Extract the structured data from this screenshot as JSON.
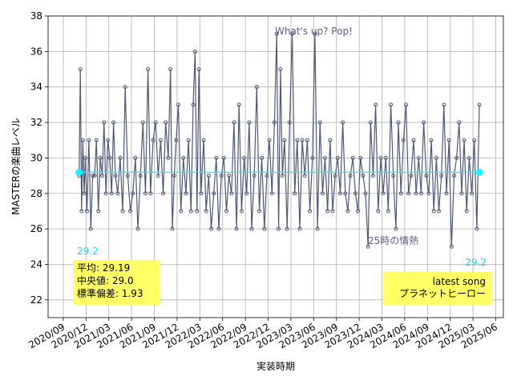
{
  "chart_data": {
    "type": "line",
    "xlabel": "実装時期",
    "ylabel": "MASTERの楽曲レベル",
    "xlim": [
      "2020/07",
      "2025/07"
    ],
    "xticks": [
      "2020/09",
      "2020/12",
      "2021/03",
      "2021/06",
      "2021/09",
      "2021/12",
      "2022/03",
      "2022/06",
      "2022/09",
      "2022/12",
      "2023/03",
      "2023/06",
      "2023/09",
      "2023/12",
      "2024/03",
      "2024/06",
      "2024/09",
      "2024/12",
      "2025/03",
      "2025/06"
    ],
    "ylim": [
      21,
      38
    ],
    "yticks": [
      22,
      24,
      26,
      28,
      30,
      32,
      34,
      36,
      38
    ],
    "grid": true,
    "series": [
      {
        "name": "MASTER",
        "color": "#4f5878",
        "x": [
          "2020/11",
          "2020/11",
          "2020/11",
          "2020/11",
          "2020/11",
          "2020/11",
          "2020/12",
          "2020/12",
          "2020/12",
          "2020/12",
          "2021/01",
          "2021/01",
          "2021/01",
          "2021/01",
          "2021/02",
          "2021/02",
          "2021/02",
          "2021/02",
          "2021/03",
          "2021/03",
          "2021/03",
          "2021/03",
          "2021/04",
          "2021/04",
          "2021/04",
          "2021/05",
          "2021/05",
          "2021/05",
          "2021/06",
          "2021/06",
          "2021/06",
          "2021/07",
          "2021/07",
          "2021/07",
          "2021/08",
          "2021/08",
          "2021/08",
          "2021/09",
          "2021/09",
          "2021/09",
          "2021/10",
          "2021/10",
          "2021/10",
          "2021/11",
          "2021/11",
          "2021/11",
          "2021/11",
          "2021/12",
          "2021/12",
          "2021/12",
          "2022/01",
          "2022/01",
          "2022/01",
          "2022/02",
          "2022/02",
          "2022/02",
          "2022/02",
          "2022/03",
          "2022/03",
          "2022/03",
          "2022/04",
          "2022/04",
          "2022/04",
          "2022/05",
          "2022/05",
          "2022/05",
          "2022/06",
          "2022/06",
          "2022/06",
          "2022/07",
          "2022/07",
          "2022/07",
          "2022/08",
          "2022/08",
          "2022/08",
          "2022/09",
          "2022/09",
          "2022/09",
          "2022/10",
          "2022/10",
          "2022/10",
          "2022/11",
          "2022/11",
          "2022/11",
          "2022/12",
          "2022/12",
          "2022/12",
          "2023/01",
          "2023/01",
          "2023/01",
          "2023/01",
          "2023/02",
          "2023/02",
          "2023/02",
          "2023/03",
          "2023/03",
          "2023/03",
          "2023/04",
          "2023/04",
          "2023/04",
          "2023/05",
          "2023/05",
          "2023/05",
          "2023/06",
          "2023/06",
          "2023/06",
          "2023/07",
          "2023/07",
          "2023/07",
          "2023/08",
          "2023/08",
          "2023/08",
          "2023/09",
          "2023/09",
          "2023/09",
          "2023/10",
          "2023/10",
          "2023/10",
          "2023/11",
          "2023/11",
          "2023/11",
          "2023/12",
          "2023/12",
          "2023/12",
          "2024/01",
          "2024/01",
          "2024/01",
          "2024/02",
          "2024/02",
          "2024/02",
          "2024/03",
          "2024/03",
          "2024/03",
          "2024/04",
          "2024/04",
          "2024/04",
          "2024/05",
          "2024/05",
          "2024/05",
          "2024/06",
          "2024/06",
          "2024/06",
          "2024/07",
          "2024/07",
          "2024/07",
          "2024/08",
          "2024/08",
          "2024/08",
          "2024/09",
          "2024/09",
          "2024/09",
          "2024/10",
          "2024/10",
          "2024/10",
          "2024/11",
          "2024/11",
          "2024/11",
          "2024/12",
          "2024/12",
          "2024/12",
          "2025/01",
          "2025/01",
          "2025/01",
          "2025/02",
          "2025/02",
          "2025/02",
          "2025/03",
          "2025/03",
          "2025/03"
        ],
        "values": [
          29,
          35,
          27,
          31,
          28,
          30,
          27,
          31,
          26,
          29,
          29,
          31,
          27,
          30,
          29,
          32,
          28,
          31,
          30,
          28,
          32,
          29,
          28,
          30,
          27,
          34,
          29,
          27,
          28,
          30,
          26,
          29,
          32,
          28,
          35,
          28,
          31,
          32,
          29,
          31,
          28,
          32,
          30,
          35,
          26,
          29,
          31,
          33,
          27,
          30,
          28,
          31,
          27,
          33,
          36,
          27,
          35,
          28,
          31,
          27,
          29,
          26,
          28,
          30,
          26,
          29,
          30,
          27,
          29,
          28,
          32,
          26,
          33,
          27,
          30,
          28,
          32,
          26,
          29,
          34,
          27,
          30,
          26,
          29,
          31,
          28,
          32,
          37,
          26,
          35,
          29,
          31,
          26,
          32,
          37,
          28,
          31,
          26,
          31,
          29,
          31,
          27,
          30,
          37,
          26,
          32,
          28,
          30,
          27,
          31,
          27,
          29,
          30,
          28,
          32,
          28,
          27,
          29,
          30,
          28,
          27,
          30,
          29,
          28,
          25,
          32,
          29,
          33,
          27,
          30,
          28,
          30,
          27,
          33,
          29,
          26,
          32,
          28,
          31,
          33,
          28,
          29,
          31,
          28,
          30,
          28,
          32,
          29,
          28,
          31,
          27,
          30,
          27,
          29,
          33,
          28,
          31,
          25,
          29,
          30,
          32,
          28,
          31,
          27,
          30,
          28,
          31,
          26,
          33
        ]
      }
    ],
    "mean": 29.19,
    "mean_labels": [
      "29.2",
      "29.2"
    ],
    "stats": [
      "平均: 29.19",
      "中央値: 29.0",
      "標準偏差:  1.93"
    ],
    "latest": [
      "latest song",
      "プラネットヒーロー"
    ],
    "annotations": [
      "What's up? Pop!",
      "25時の情熱"
    ]
  }
}
